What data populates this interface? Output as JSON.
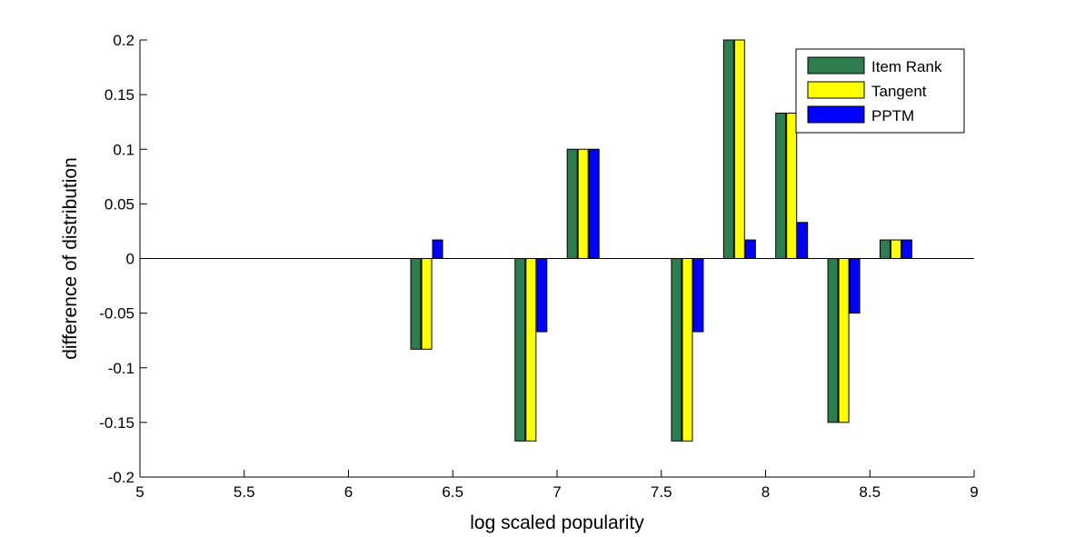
{
  "chart_data": {
    "type": "bar",
    "xlabel": "log scaled popularity",
    "ylabel": "difference of distribution",
    "xlim": [
      5,
      9
    ],
    "ylim": [
      -0.2,
      0.2
    ],
    "x_ticks": [
      "5",
      "5.5",
      "6",
      "6.5",
      "7",
      "7.5",
      "8",
      "8.5",
      "9"
    ],
    "y_ticks": [
      "0.2",
      "0.15",
      "0.1",
      "0.05",
      "0",
      "-0.05",
      "-0.1",
      "-0.15",
      "-0.2"
    ],
    "x": [
      6.375,
      6.875,
      7.125,
      7.625,
      7.875,
      8.125,
      8.375,
      8.625
    ],
    "series": [
      {
        "name": "Item Rank",
        "color": "#2e7d4f",
        "values": [
          -0.083,
          -0.167,
          0.1,
          -0.167,
          0.2,
          0.133,
          -0.15,
          0.017
        ]
      },
      {
        "name": "Tangent",
        "color": "#ffff00",
        "values": [
          -0.083,
          -0.167,
          0.1,
          -0.167,
          0.2,
          0.133,
          -0.15,
          0.017
        ]
      },
      {
        "name": "PPTM",
        "color": "#0000ff",
        "values": [
          0.017,
          -0.067,
          0.1,
          -0.067,
          0.017,
          0.033,
          -0.05,
          0.017
        ]
      }
    ],
    "legend_position": "top-right",
    "grid": false
  }
}
